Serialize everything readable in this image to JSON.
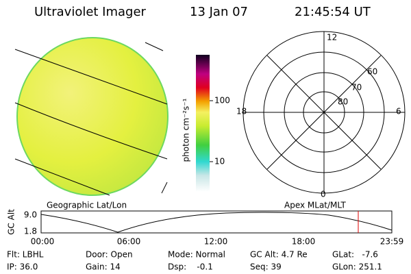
{
  "header": {
    "instrument": "Ultraviolet Imager",
    "date": "13 Jan 07",
    "time": "21:45:54 UT"
  },
  "colorbar": {
    "label": "photon cm⁻²s⁻¹",
    "ticks": [
      "100",
      "10"
    ]
  },
  "polar": {
    "labels": {
      "top": "12",
      "left": "18",
      "right": "6",
      "bottom": "0"
    },
    "rings": [
      "60",
      "70",
      "80"
    ]
  },
  "altitude_plot": {
    "left_title": "Geographic Lat/Lon",
    "right_title": "Apex MLat/MLT",
    "y_label": "GC Alt",
    "y_ticks": [
      "9.0",
      "1.8"
    ],
    "x_ticks": [
      "00:00",
      "06:00",
      "12:00",
      "18:00",
      "23:59"
    ]
  },
  "info": {
    "rows": [
      [
        "Flt: LBHL",
        "Door: Open",
        "Mode: Normal",
        "GC Alt: 4.7 Re",
        "GLat:   -7.6"
      ],
      [
        "IP: 36.0",
        "Gain: 14",
        "Dsp:    -0.1",
        "Seq: 39",
        "GLon: 251.1"
      ]
    ]
  }
}
